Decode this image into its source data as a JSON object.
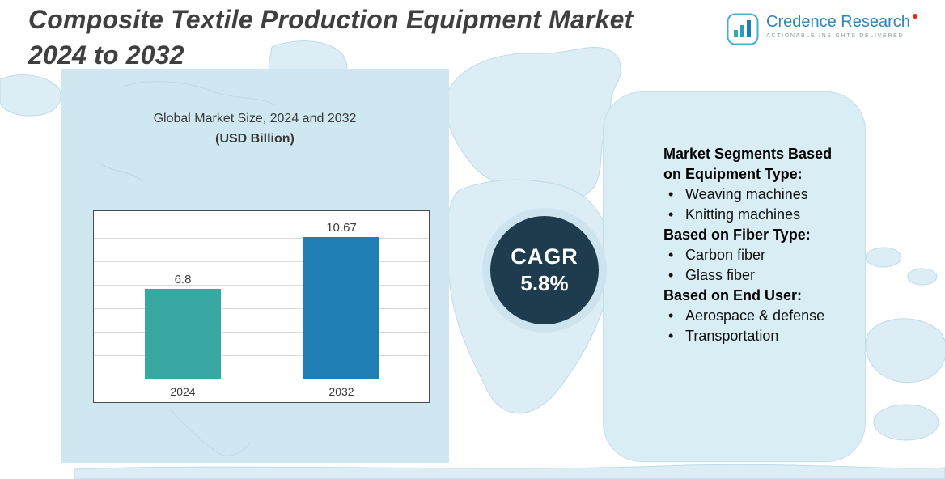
{
  "header": {
    "title_lines": [
      "Composite Textile Production Equipment Market",
      "2024 to 2032"
    ]
  },
  "logo": {
    "name": "Credence Research",
    "tagline": "Actionable Insights Delivered"
  },
  "chart": {
    "title_line1": "Global Market Size, 2024 and 2032",
    "title_line2": "(USD Billion)"
  },
  "chart_data": {
    "type": "bar",
    "title": "Global Market Size, 2024 and 2032 (USD Billion)",
    "categories": [
      "2024",
      "2032"
    ],
    "values": [
      6.8,
      10.67
    ],
    "value_labels": [
      "6.8",
      "10.67"
    ],
    "xlabel": "",
    "ylabel": "",
    "ylim": [
      0,
      12
    ],
    "grid": true,
    "legend": false,
    "colors": [
      "#3aa8a2",
      "#1f7fb5"
    ]
  },
  "cagr": {
    "label": "CAGR",
    "value": "5.8%"
  },
  "segments": {
    "sections": [
      {
        "heading": "Market Segments Based on Equipment Type:",
        "items": [
          "Weaving machines",
          "Knitting machines"
        ]
      },
      {
        "heading": "Based on Fiber Type:",
        "items": [
          "Carbon fiber",
          "Glass fiber"
        ]
      },
      {
        "heading": "Based on End User:",
        "items": [
          "Aerospace & defense",
          "Transportation"
        ]
      }
    ]
  },
  "colors": {
    "title_text": "#3f3f3f",
    "cagr_bg": "#1e3c4e",
    "panel_bg": "#d9edf5",
    "map_fill": "#dcedf5",
    "logo_blue": "#2e86b5",
    "logo_red": "#e1251b",
    "accent_teal": "#3aa8a2",
    "accent_blue": "#1f7fb5"
  }
}
